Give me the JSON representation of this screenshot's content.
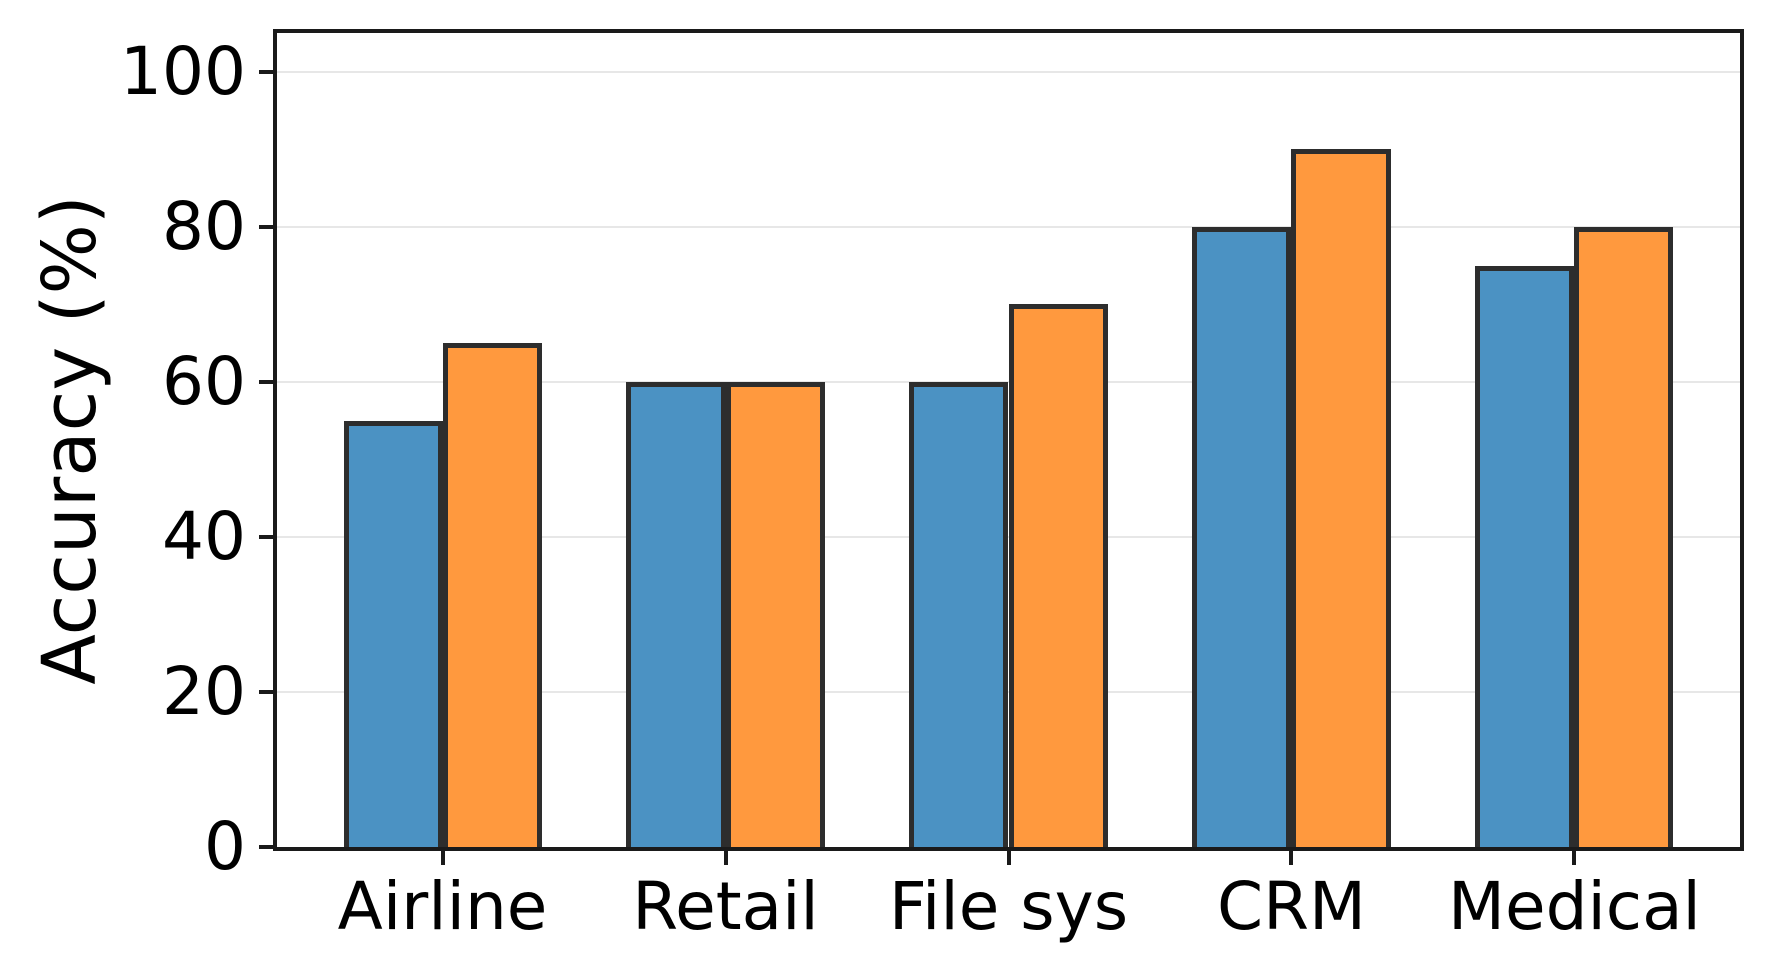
{
  "chart_data": {
    "type": "bar",
    "title": "",
    "xlabel": "",
    "ylabel": "Accuracy (%)",
    "categories": [
      "Airline",
      "Retail",
      "File sys",
      "CRM",
      "Medical"
    ],
    "series": [
      {
        "color": "#4B92C3",
        "values": [
          55,
          60,
          60,
          80,
          75
        ]
      },
      {
        "color": "#FF993E",
        "values": [
          65,
          60,
          70,
          90,
          80
        ]
      }
    ],
    "bar_edge_color": "#2d2d2d",
    "bar_width": 0.35,
    "xlim": [
      -0.585,
      4.585
    ],
    "ylim": [
      0,
      105
    ],
    "yticks": [
      0,
      20,
      40,
      60,
      80,
      100
    ],
    "grid": "horizontal",
    "grid_color": "#e7e7e7",
    "legend": "none"
  }
}
